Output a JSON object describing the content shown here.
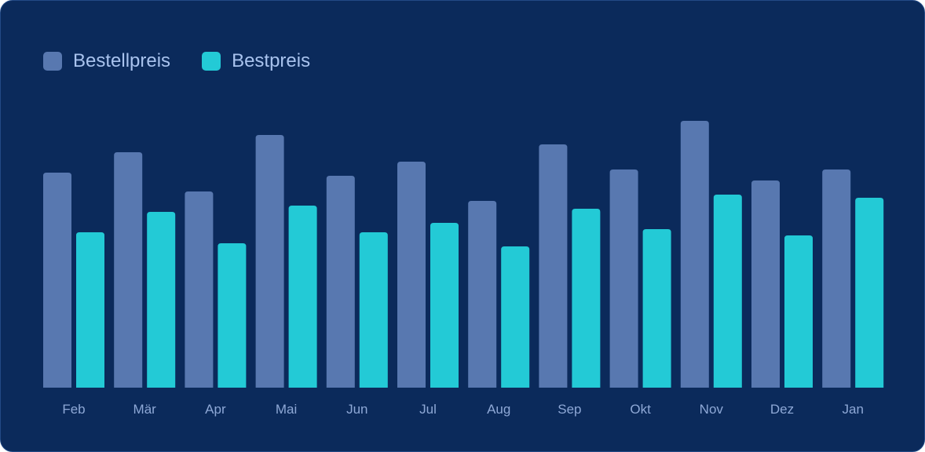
{
  "chart_data": {
    "type": "bar",
    "categories": [
      "Feb",
      "Mär",
      "Apr",
      "Mai",
      "Jun",
      "Jul",
      "Aug",
      "Sep",
      "Okt",
      "Nov",
      "Dez",
      "Jan"
    ],
    "series": [
      {
        "name": "Bestellpreis",
        "color": "#5878b0",
        "values": [
          274,
          300,
          250,
          322,
          270,
          288,
          238,
          310,
          278,
          340,
          264,
          278
        ]
      },
      {
        "name": "Bestpreis",
        "color": "#23cad6",
        "values": [
          198,
          224,
          184,
          232,
          198,
          210,
          180,
          228,
          202,
          246,
          194,
          242
        ]
      }
    ],
    "title": "",
    "xlabel": "",
    "ylabel": "",
    "ylim": [
      0,
      400
    ],
    "grid": false,
    "legend_position": "top-left"
  }
}
